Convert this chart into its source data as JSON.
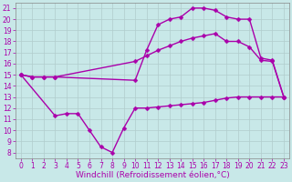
{
  "xlabel": "Windchill (Refroidissement éolien,°C)",
  "xlim": [
    -0.5,
    23.5
  ],
  "ylim": [
    7.5,
    21.5
  ],
  "yticks": [
    8,
    9,
    10,
    11,
    12,
    13,
    14,
    15,
    16,
    17,
    18,
    19,
    20,
    21
  ],
  "xticks": [
    0,
    1,
    2,
    3,
    4,
    5,
    6,
    7,
    8,
    9,
    10,
    11,
    12,
    13,
    14,
    15,
    16,
    17,
    18,
    19,
    20,
    21,
    22,
    23
  ],
  "bg_color": "#c8e8e8",
  "line_color": "#aa00aa",
  "line1_x": [
    0,
    1,
    2,
    3,
    10,
    11,
    12,
    13,
    14,
    15,
    16,
    17,
    18,
    19,
    20,
    21,
    22,
    23
  ],
  "line1_y": [
    15,
    14.8,
    14.8,
    14.8,
    14.5,
    17.2,
    19.5,
    20.0,
    20.2,
    21.0,
    21.0,
    20.8,
    20.2,
    20.0,
    20.0,
    16.5,
    16.3,
    13.0
  ],
  "line2_x": [
    0,
    1,
    2,
    3,
    10,
    11,
    12,
    13,
    14,
    15,
    16,
    17,
    18,
    19,
    20,
    21,
    22,
    23
  ],
  "line2_y": [
    15,
    14.8,
    14.8,
    14.8,
    16.2,
    16.7,
    17.2,
    17.6,
    18.0,
    18.3,
    18.5,
    18.7,
    18.0,
    18.0,
    17.5,
    16.3,
    16.2,
    13.0
  ],
  "line3_x": [
    0,
    3,
    4,
    5,
    6,
    7,
    8,
    9,
    10,
    11,
    12,
    13,
    14,
    15,
    16,
    17,
    18,
    19,
    20,
    21,
    22,
    23
  ],
  "line3_y": [
    15,
    11.3,
    11.5,
    11.5,
    10.0,
    8.5,
    8.0,
    10.2,
    12.0,
    12.0,
    12.1,
    12.2,
    12.3,
    12.4,
    12.5,
    12.7,
    12.9,
    13.0,
    13.0,
    13.0,
    13.0,
    13.0
  ],
  "markersize": 2.5,
  "linewidth": 1.0,
  "tick_fontsize": 5.5,
  "label_fontsize": 6.5,
  "grid_color": "#b0cccc",
  "grid_linewidth": 0.5
}
